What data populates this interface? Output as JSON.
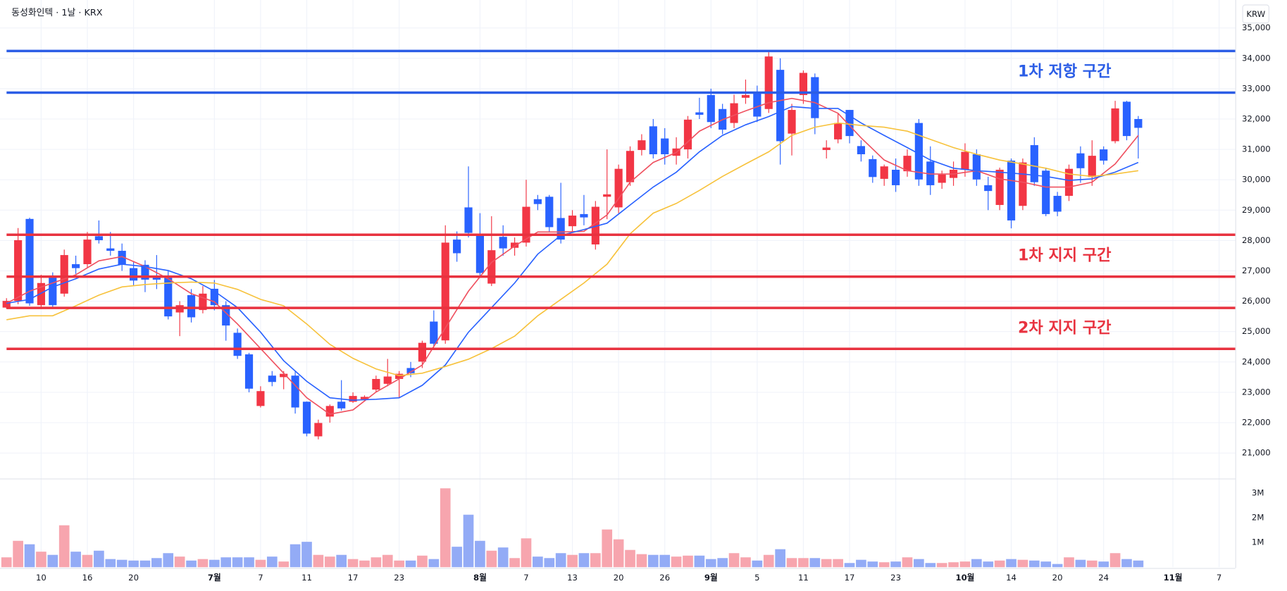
{
  "chart_data": {
    "type": "candlestick",
    "title": "동성화인텍 · 1날 · KRX",
    "currency": "KRW",
    "categories": [
      null,
      null,
      null,
      "10",
      null,
      null,
      null,
      "16",
      null,
      null,
      null,
      "20",
      null,
      null,
      null,
      null,
      null,
      null,
      "7월",
      null,
      null,
      null,
      "7",
      null,
      null,
      null,
      "11",
      null,
      null,
      null,
      "17",
      null,
      null,
      null,
      "23",
      null,
      null,
      null,
      null,
      null,
      null,
      "8월",
      null,
      null,
      null,
      "7",
      null,
      null,
      null,
      "13",
      null,
      null,
      null,
      "20",
      null,
      null,
      null,
      "26",
      null,
      null,
      null,
      "9월",
      null,
      null,
      null,
      "5",
      null,
      null,
      null,
      "11",
      null,
      null,
      null,
      "17",
      null,
      null,
      null,
      "23",
      null,
      null,
      null,
      null,
      null,
      "10월",
      null,
      null,
      null,
      "14",
      null,
      null,
      null,
      "20",
      null,
      null,
      null,
      "24",
      null,
      null,
      null,
      null,
      null,
      "11월",
      null,
      null,
      null,
      "7"
    ],
    "open": [
      25790,
      26010,
      28710,
      25870,
      26820,
      26250,
      27220,
      27220,
      28140,
      27740,
      27660,
      27090,
      27200,
      26820,
      26820,
      25630,
      26200,
      25710,
      26410,
      25870,
      24960,
      24250,
      22550,
      23550,
      23500,
      23550,
      22690,
      21550,
      22200,
      22690,
      22690,
      22770,
      23090,
      23280,
      23440,
      23800,
      24010,
      25330,
      24710,
      28030,
      29090,
      28220,
      26580,
      28120,
      27760,
      27930,
      29360,
      29440,
      28740,
      28470,
      28870,
      27870,
      29440,
      29090,
      29920,
      30980,
      31760,
      31360,
      30790,
      31000,
      32220,
      32790,
      32330,
      31870,
      32700,
      32870,
      32330,
      33620,
      31520,
      32790,
      33380,
      30980,
      31330,
      32300,
      31110,
      30680,
      30030,
      30330,
      30280,
      31870,
      30600,
      29900,
      30060,
      30330,
      30840,
      29820,
      29170,
      30630,
      29140,
      31140,
      30300,
      29470,
      29470,
      30870,
      30090,
      31000,
      31270,
      32570,
      32000,
      null,
      null,
      null,
      null,
      null,
      null,
      null
    ],
    "high": [
      26100,
      28410,
      28750,
      26870,
      26950,
      27700,
      27500,
      28280,
      28660,
      28280,
      27900,
      27300,
      27350,
      27520,
      27000,
      26000,
      26400,
      26500,
      26700,
      26000,
      25100,
      24300,
      23200,
      23700,
      23700,
      23700,
      22700,
      22100,
      22600,
      23400,
      23000,
      22900,
      23550,
      24100,
      23700,
      24000,
      24700,
      25700,
      28500,
      28300,
      30440,
      28900,
      28800,
      28500,
      28100,
      30000,
      29500,
      29500,
      29900,
      29000,
      29500,
      29300,
      31000,
      30500,
      31100,
      31500,
      32000,
      31700,
      31400,
      32100,
      32700,
      33000,
      32500,
      32800,
      33300,
      33100,
      34200,
      34000,
      32500,
      33600,
      33500,
      31300,
      32200,
      32300,
      31300,
      30800,
      30500,
      30700,
      31000,
      32000,
      31100,
      30300,
      30600,
      31200,
      31000,
      30100,
      30400,
      30700,
      30700,
      31400,
      30400,
      29600,
      30500,
      31100,
      31300,
      31100,
      32600,
      32600,
      32100,
      null,
      null,
      null,
      null,
      null,
      null,
      null
    ],
    "low": [
      25750,
      25900,
      25850,
      25800,
      25800,
      26150,
      26900,
      27100,
      27900,
      27500,
      27000,
      26500,
      26300,
      26400,
      25400,
      24850,
      25300,
      25600,
      25700,
      24700,
      24100,
      23000,
      22500,
      23200,
      23100,
      22300,
      21550,
      21450,
      22000,
      22400,
      22650,
      22700,
      23000,
      23200,
      22800,
      23500,
      23800,
      24500,
      24600,
      27300,
      28100,
      26800,
      26500,
      27500,
      27500,
      27800,
      29000,
      28300,
      27900,
      28300,
      28500,
      27700,
      28700,
      28900,
      29800,
      30800,
      30700,
      30500,
      30500,
      30700,
      32000,
      31700,
      31500,
      31700,
      32500,
      31900,
      32200,
      30500,
      30800,
      32500,
      31500,
      30700,
      31200,
      31200,
      30600,
      29900,
      29800,
      29600,
      30100,
      29800,
      29500,
      29700,
      29800,
      30100,
      29800,
      29000,
      29000,
      28400,
      29000,
      29800,
      28800,
      28800,
      29300,
      29900,
      29800,
      30500,
      31200,
      31300,
      30700,
      null,
      null,
      null,
      null,
      null,
      null,
      null
    ],
    "close": [
      26010,
      28010,
      25930,
      26600,
      25870,
      27520,
      27090,
      28030,
      28010,
      27660,
      27200,
      26680,
      26710,
      26710,
      25500,
      25870,
      25470,
      26250,
      25870,
      25200,
      24200,
      23120,
      23040,
      23340,
      23610,
      22500,
      21640,
      21990,
      22550,
      22470,
      22880,
      22850,
      23440,
      23520,
      23610,
      23630,
      24630,
      24600,
      27930,
      27580,
      28250,
      26930,
      27680,
      27740,
      27930,
      29110,
      29200,
      28440,
      28030,
      28820,
      28760,
      29110,
      29520,
      30360,
      30950,
      31300,
      30840,
      30840,
      31030,
      31980,
      32140,
      31900,
      31650,
      32520,
      32790,
      32080,
      34060,
      31270,
      32300,
      33520,
      32030,
      31060,
      31870,
      31440,
      30840,
      30090,
      30440,
      29820,
      30790,
      30010,
      29820,
      30170,
      30330,
      30920,
      30010,
      29630,
      30330,
      28660,
      30570,
      29920,
      28870,
      28950,
      30360,
      30380,
      30790,
      30630,
      32350,
      31440,
      31710,
      null,
      null,
      null,
      null,
      null,
      null,
      null
    ],
    "up_color": "#f23645",
    "down_color": "#2962ff",
    "ylim": [
      20160,
      35920
    ],
    "yticks": [
      {
        "value": 21000,
        "label": "21,000"
      },
      {
        "value": 22000,
        "label": "22,000"
      },
      {
        "value": 23000,
        "label": "23,000"
      },
      {
        "value": 24000,
        "label": "24,000"
      },
      {
        "value": 25000,
        "label": "25,000"
      },
      {
        "value": 26000,
        "label": "26,000"
      },
      {
        "value": 27000,
        "label": "27,000"
      },
      {
        "value": 28000,
        "label": "28,000"
      },
      {
        "value": 29000,
        "label": "29,000"
      },
      {
        "value": 30000,
        "label": "30,000"
      },
      {
        "value": 31000,
        "label": "31,000"
      },
      {
        "value": 32000,
        "label": "32,000"
      },
      {
        "value": 33000,
        "label": "33,000"
      },
      {
        "value": 34000,
        "label": "34,000"
      },
      {
        "value": 35000,
        "label": "35,000"
      }
    ],
    "grid": true,
    "moving_averages": [
      {
        "color": "#ef5160",
        "x": [
          0,
          2,
          4,
          6,
          8,
          10,
          12,
          14,
          16,
          18,
          20,
          22,
          24,
          26,
          28,
          30,
          32,
          34,
          36,
          38,
          40,
          42,
          44,
          46,
          48,
          50,
          52,
          54,
          56,
          58,
          60,
          62,
          64,
          66,
          68,
          70,
          72,
          74,
          76,
          78,
          80,
          82,
          84,
          86,
          88,
          90,
          92,
          94,
          96,
          98
        ],
        "values": [
          25930,
          26330,
          26600,
          26870,
          27330,
          27470,
          27140,
          26740,
          26250,
          25980,
          25250,
          24440,
          23630,
          22820,
          22280,
          22420,
          23010,
          23440,
          23900,
          25120,
          26330,
          27280,
          27820,
          28280,
          28280,
          28300,
          28840,
          29920,
          30570,
          30900,
          31600,
          31980,
          32270,
          32540,
          32680,
          32540,
          32190,
          31380,
          30650,
          30300,
          30190,
          30190,
          30300,
          30030,
          29920,
          29760,
          29760,
          29920,
          30520,
          31460
        ]
      },
      {
        "color": "#2962ff",
        "x": [
          0,
          2,
          4,
          6,
          8,
          10,
          12,
          14,
          16,
          18,
          20,
          22,
          24,
          26,
          28,
          30,
          32,
          34,
          36,
          38,
          40,
          42,
          44,
          46,
          48,
          50,
          52,
          54,
          56,
          58,
          60,
          62,
          64,
          66,
          68,
          70,
          72,
          74,
          76,
          78,
          80,
          82,
          84,
          86,
          88,
          90,
          92,
          94,
          96,
          98
        ],
        "values": [
          25930,
          26060,
          26470,
          26740,
          27060,
          27220,
          27140,
          27010,
          26740,
          26330,
          25790,
          24980,
          24040,
          23360,
          22820,
          22740,
          22770,
          22820,
          23230,
          23900,
          24980,
          25790,
          26600,
          27550,
          28170,
          28360,
          28570,
          29170,
          29760,
          30250,
          30920,
          31460,
          31810,
          32080,
          32410,
          32350,
          32350,
          31870,
          31460,
          31060,
          30650,
          30380,
          30300,
          30250,
          30190,
          30110,
          29980,
          30030,
          30250,
          30570
        ]
      },
      {
        "color": "#f7c23c",
        "x": [
          0,
          2,
          4,
          6,
          8,
          10,
          12,
          14,
          16,
          18,
          20,
          22,
          24,
          26,
          28,
          30,
          32,
          34,
          36,
          38,
          40,
          42,
          44,
          46,
          48,
          50,
          52,
          54,
          56,
          58,
          60,
          62,
          64,
          66,
          68,
          70,
          72,
          74,
          76,
          78,
          80,
          82,
          84,
          86,
          88,
          90,
          92,
          94,
          96,
          98
        ],
        "values": [
          25390,
          25520,
          25520,
          25850,
          26200,
          26470,
          26550,
          26600,
          26630,
          26600,
          26390,
          26060,
          25850,
          25250,
          24580,
          24120,
          23770,
          23550,
          23630,
          23850,
          24090,
          24440,
          24850,
          25520,
          26060,
          26600,
          27220,
          28220,
          28900,
          29220,
          29650,
          30110,
          30520,
          30920,
          31460,
          31730,
          31870,
          31790,
          31730,
          31600,
          31330,
          31060,
          30840,
          30650,
          30520,
          30380,
          30190,
          30110,
          30190,
          30300
        ]
      }
    ],
    "zones": [
      {
        "label": "1차 저항 구간",
        "color": "#2b5de6",
        "range": [
          34240,
          32870
        ]
      },
      {
        "label": "1차 지지 구간",
        "color": "#e8323f",
        "range": [
          28190,
          26810
        ]
      },
      {
        "label": "2차 지지 구간",
        "color": "#e8323f",
        "range": [
          25780,
          24430
        ]
      }
    ],
    "volume": [
      400000,
      1070000,
      930000,
      630000,
      500000,
      1700000,
      630000,
      500000,
      670000,
      330000,
      300000,
      270000,
      270000,
      370000,
      570000,
      430000,
      270000,
      330000,
      300000,
      400000,
      400000,
      400000,
      300000,
      430000,
      230000,
      930000,
      1030000,
      500000,
      430000,
      500000,
      330000,
      270000,
      400000,
      500000,
      270000,
      270000,
      470000,
      330000,
      3200000,
      830000,
      2130000,
      1070000,
      670000,
      800000,
      370000,
      1170000,
      430000,
      370000,
      570000,
      500000,
      570000,
      570000,
      1530000,
      1130000,
      700000,
      530000,
      500000,
      500000,
      430000,
      470000,
      470000,
      330000,
      370000,
      570000,
      400000,
      270000,
      500000,
      730000,
      370000,
      370000,
      370000,
      330000,
      330000,
      170000,
      300000,
      230000,
      200000,
      230000,
      400000,
      330000,
      170000,
      170000,
      200000,
      230000,
      330000,
      230000,
      270000,
      330000,
      300000,
      270000,
      230000,
      130000,
      400000,
      300000,
      270000,
      230000,
      570000,
      330000,
      270000,
      null,
      null,
      null,
      null,
      null,
      null,
      null
    ],
    "volume_up_color": "#f7a5ae",
    "volume_down_color": "#93abf6",
    "volume_ylim": [
      0,
      3530000
    ],
    "volume_ticks": [
      {
        "value": 1000000,
        "label": "1M"
      },
      {
        "value": 2000000,
        "label": "2M"
      },
      {
        "value": 3000000,
        "label": "3M"
      }
    ]
  }
}
